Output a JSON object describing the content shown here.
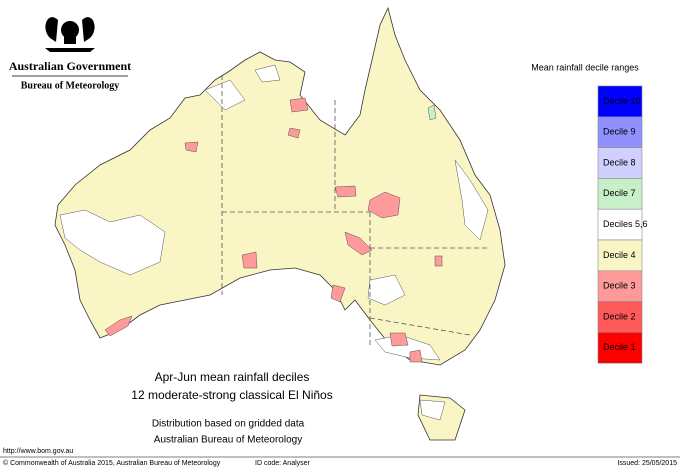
{
  "header": {
    "title": "Australian Government",
    "subtitle": "Bureau of Meteorology"
  },
  "legend": {
    "title": "Mean rainfall decile ranges",
    "items": [
      {
        "label": "Decile 10",
        "color": "#0000ff"
      },
      {
        "label": "Decile 9",
        "color": "#9090ff"
      },
      {
        "label": "Decile 8",
        "color": "#d0d0ff"
      },
      {
        "label": "Decile 7",
        "color": "#c8f0c8"
      },
      {
        "label": "Deciles 5,6",
        "color": "#ffffff"
      },
      {
        "label": "Decile 4",
        "color": "#f9f5c4"
      },
      {
        "label": "Decile 3",
        "color": "#ff9a9a"
      },
      {
        "label": "Decile 2",
        "color": "#ff5a5a"
      },
      {
        "label": "Decile 1",
        "color": "#ff0000"
      }
    ]
  },
  "caption": {
    "lines": [
      "Apr-Jun mean rainfall deciles",
      "12 moderate-strong classical El Niños"
    ]
  },
  "source": {
    "lines": [
      "Distribution based on gridded data",
      "Australian Bureau of Meteorology"
    ]
  },
  "footer": {
    "url": "http://www.bom.gov.au",
    "copyright": "© Commonwealth of Australia 2015, Australian Bureau of Meteorology",
    "id_code": "ID code: Analyser",
    "issued": "Issued: 25/05/2015"
  }
}
